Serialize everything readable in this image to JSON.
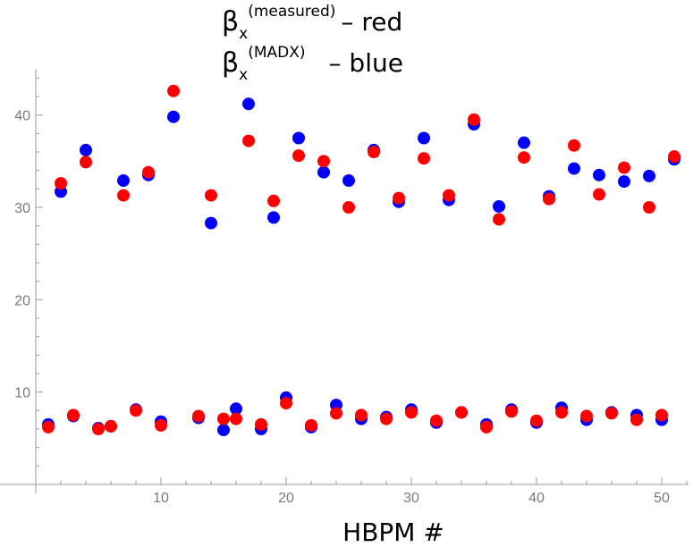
{
  "chart_data": {
    "type": "scatter",
    "xlabel": "HBPM #",
    "ylabel": "",
    "xlim": [
      0,
      52.5
    ],
    "ylim": [
      0,
      45
    ],
    "x_ticks": [
      10,
      20,
      30,
      40,
      50
    ],
    "y_ticks": [
      10,
      20,
      30,
      40
    ],
    "legend_placement": "top-center",
    "legend": [
      {
        "symbol": "β",
        "subscript": "x",
        "superscript": "(measured)",
        "text": "– red"
      },
      {
        "symbol": "β",
        "subscript": "x",
        "superscript": "(MADX)",
        "text": "– blue"
      }
    ],
    "series": [
      {
        "label": "measured",
        "color": "#ff0000",
        "points": [
          [
            1,
            6.2
          ],
          [
            2,
            32.6
          ],
          [
            3,
            7.5
          ],
          [
            4,
            34.9
          ],
          [
            5,
            6.0
          ],
          [
            6,
            6.3
          ],
          [
            7,
            31.3
          ],
          [
            8,
            8.0
          ],
          [
            9,
            33.8
          ],
          [
            10,
            6.4
          ],
          [
            11,
            42.6
          ],
          [
            13,
            7.4
          ],
          [
            14,
            31.3
          ],
          [
            15,
            7.1
          ],
          [
            16,
            7.1
          ],
          [
            17,
            37.2
          ],
          [
            18,
            6.5
          ],
          [
            19,
            30.7
          ],
          [
            20,
            8.8
          ],
          [
            21,
            35.6
          ],
          [
            22,
            6.4
          ],
          [
            23,
            35.0
          ],
          [
            24,
            7.7
          ],
          [
            25,
            30.0
          ],
          [
            26,
            7.5
          ],
          [
            27,
            36.0
          ],
          [
            28,
            7.1
          ],
          [
            29,
            31.0
          ],
          [
            30,
            7.8
          ],
          [
            31,
            35.3
          ],
          [
            32,
            6.9
          ],
          [
            33,
            31.3
          ],
          [
            34,
            7.8
          ],
          [
            35,
            39.5
          ],
          [
            36,
            6.2
          ],
          [
            37,
            28.7
          ],
          [
            38,
            7.9
          ],
          [
            39,
            35.4
          ],
          [
            40,
            6.9
          ],
          [
            41,
            30.9
          ],
          [
            42,
            7.8
          ],
          [
            43,
            36.7
          ],
          [
            44,
            7.4
          ],
          [
            45,
            31.4
          ],
          [
            46,
            7.7
          ],
          [
            47,
            34.3
          ],
          [
            48,
            7.0
          ],
          [
            49,
            30.0
          ],
          [
            50,
            7.5
          ],
          [
            51,
            35.5
          ]
        ]
      },
      {
        "label": "MADX",
        "color": "#0000ff",
        "points": [
          [
            1,
            6.5
          ],
          [
            2,
            31.7
          ],
          [
            3,
            7.4
          ],
          [
            4,
            36.2
          ],
          [
            5,
            6.1
          ],
          [
            6,
            6.3
          ],
          [
            7,
            32.9
          ],
          [
            8,
            8.1
          ],
          [
            9,
            33.5
          ],
          [
            10,
            6.8
          ],
          [
            11,
            39.8
          ],
          [
            13,
            7.2
          ],
          [
            14,
            28.3
          ],
          [
            15,
            5.9
          ],
          [
            16,
            8.2
          ],
          [
            17,
            41.2
          ],
          [
            18,
            6.0
          ],
          [
            19,
            28.9
          ],
          [
            20,
            9.4
          ],
          [
            21,
            37.5
          ],
          [
            22,
            6.2
          ],
          [
            23,
            33.8
          ],
          [
            24,
            8.6
          ],
          [
            25,
            32.9
          ],
          [
            26,
            7.1
          ],
          [
            27,
            36.2
          ],
          [
            28,
            7.3
          ],
          [
            29,
            30.6
          ],
          [
            30,
            8.1
          ],
          [
            31,
            37.5
          ],
          [
            32,
            6.7
          ],
          [
            33,
            30.8
          ],
          [
            34,
            7.8
          ],
          [
            35,
            39.0
          ],
          [
            36,
            6.5
          ],
          [
            37,
            30.1
          ],
          [
            38,
            8.1
          ],
          [
            39,
            37.0
          ],
          [
            40,
            6.7
          ],
          [
            41,
            31.2
          ],
          [
            42,
            8.3
          ],
          [
            43,
            34.2
          ],
          [
            44,
            7.0
          ],
          [
            45,
            33.5
          ],
          [
            46,
            7.8
          ],
          [
            47,
            32.8
          ],
          [
            48,
            7.5
          ],
          [
            49,
            33.4
          ],
          [
            50,
            7.0
          ],
          [
            51,
            35.2
          ]
        ]
      }
    ]
  }
}
